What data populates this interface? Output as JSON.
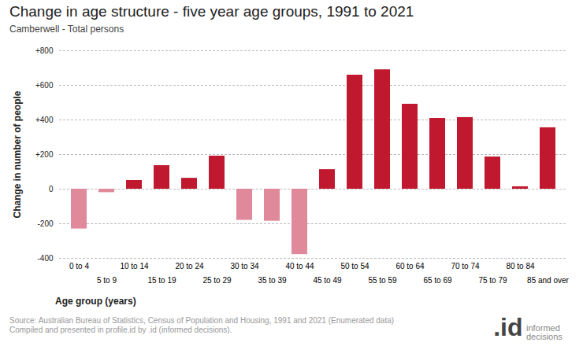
{
  "chart_data": {
    "type": "bar",
    "title": "Change in age structure - five year age groups, 1991 to 2021",
    "subtitle": "Camberwell - Total persons",
    "x_label": "Age group (years)",
    "y_label": "Change in number of people",
    "categories": [
      "0 to 4",
      "5 to 9",
      "10 to 14",
      "15 to 19",
      "20 to 24",
      "25 to 29",
      "30 to 34",
      "35 to 39",
      "40 to 44",
      "45 to 49",
      "50 to 54",
      "55 to 59",
      "60 to 64",
      "65 to 69",
      "70 to 74",
      "75 to 79",
      "80 to 84",
      "85 and over"
    ],
    "values": [
      -230,
      -20,
      50,
      136,
      63,
      191,
      -180,
      -185,
      -378,
      113,
      659,
      690,
      491,
      409,
      414,
      186,
      14,
      355
    ],
    "colors": [
      "#e0899a",
      "#e0899a",
      "#c0182f",
      "#c0182f",
      "#c0182f",
      "#c0182f",
      "#e0899a",
      "#e0899a",
      "#e0899a",
      "#c0182f",
      "#c0182f",
      "#c0182f",
      "#c0182f",
      "#c0182f",
      "#c0182f",
      "#c0182f",
      "#c0182f",
      "#c0182f"
    ],
    "ylim": [
      -400,
      800
    ],
    "yticks": [
      -400,
      -200,
      0,
      {
        "value": 200,
        "label": "+200"
      },
      {
        "value": 400,
        "label": "+400"
      },
      {
        "value": 600,
        "label": "+600"
      },
      {
        "value": 800,
        "label": "+800"
      }
    ],
    "grid": true,
    "source": [
      "Source: Australian Bureau of Statistics, Census of Population and Housing, 1991 and 2021 (Enumerated data)",
      "Compiled and presented in profile.id by .id (informed decisions)."
    ],
    "logo": {
      "mark": ".id",
      "tagline": "informed decisions"
    }
  }
}
